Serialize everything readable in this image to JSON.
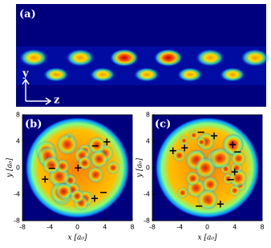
{
  "chart_data": [
    {
      "type": "heatmap",
      "label": "(a)",
      "vertical_label": "y",
      "horizontal_label": "z"
    },
    {
      "type": "scatter",
      "label": "(b)",
      "xlabel": "x [a₀]",
      "ylabel": "y [a₀]",
      "xlim": [
        -8,
        8
      ],
      "ylim": [
        -8,
        8
      ],
      "xticks": [
        -8,
        -4,
        0,
        4,
        8
      ],
      "yticks": [
        -8,
        -4,
        0,
        4,
        8
      ],
      "x": [
        4.3,
        2.6,
        0.1,
        -3.7,
        -4.7,
        3.8,
        2.5
      ],
      "y": [
        3.8,
        3.2,
        -0.1,
        -0.2,
        -1.8,
        -3.8,
        -4.7
      ],
      "markers": [
        "+",
        "−",
        "+",
        "−",
        "+",
        "−",
        "+"
      ]
    },
    {
      "type": "scatter",
      "label": "(c)",
      "xlabel": "x [a₀]",
      "ylabel": "y [a₀]",
      "xlim": [
        -8,
        8
      ],
      "ylim": [
        -8,
        8
      ],
      "xticks": [
        -8,
        -4,
        0,
        4,
        8
      ],
      "yticks": [
        -8,
        -4,
        0,
        4,
        8
      ],
      "x": [
        -0.9,
        1.0,
        3.7,
        4.4,
        -3.3,
        -5.0,
        4.0,
        3.4,
        1.9,
        -1.2
      ],
      "y": [
        5.3,
        4.7,
        3.4,
        2.3,
        2.9,
        2.5,
        -0.7,
        -1.9,
        -5.6,
        -5.9
      ],
      "markers": [
        "−",
        "+",
        "+",
        "−",
        "+",
        "+",
        "+",
        "−",
        "+",
        "−"
      ]
    }
  ]
}
